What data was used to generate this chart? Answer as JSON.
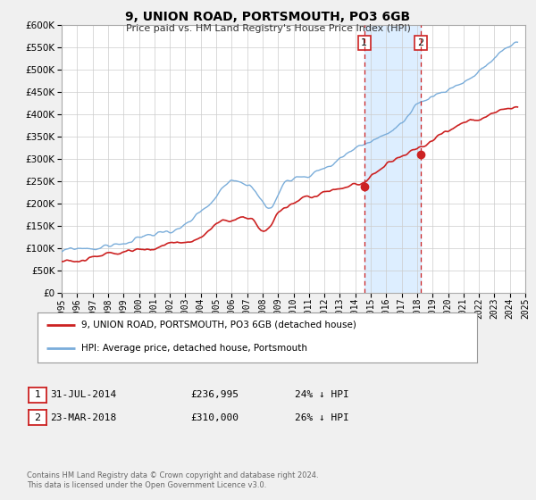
{
  "title": "9, UNION ROAD, PORTSMOUTH, PO3 6GB",
  "subtitle": "Price paid vs. HM Land Registry's House Price Index (HPI)",
  "xlim": [
    1995,
    2025
  ],
  "ylim": [
    0,
    600000
  ],
  "yticks": [
    0,
    50000,
    100000,
    150000,
    200000,
    250000,
    300000,
    350000,
    400000,
    450000,
    500000,
    550000,
    600000
  ],
  "xticks": [
    1995,
    1996,
    1997,
    1998,
    1999,
    2000,
    2001,
    2002,
    2003,
    2004,
    2005,
    2006,
    2007,
    2008,
    2009,
    2010,
    2011,
    2012,
    2013,
    2014,
    2015,
    2016,
    2017,
    2018,
    2019,
    2020,
    2021,
    2022,
    2023,
    2024,
    2025
  ],
  "hpi_color": "#7aadda",
  "price_color": "#cc2222",
  "marker_color": "#cc2222",
  "shaded_color": "#ddeeff",
  "vline1_x": 2014.58,
  "vline2_x": 2018.23,
  "vline_color": "#cc2222",
  "point1_y": 236995,
  "point2_y": 310000,
  "legend_label1": "9, UNION ROAD, PORTSMOUTH, PO3 6GB (detached house)",
  "legend_label2": "HPI: Average price, detached house, Portsmouth",
  "ann1_label": "1",
  "ann1_date": "31-JUL-2014",
  "ann1_price": "£236,995",
  "ann1_pct": "24% ↓ HPI",
  "ann2_label": "2",
  "ann2_date": "23-MAR-2018",
  "ann2_price": "£310,000",
  "ann2_pct": "26% ↓ HPI",
  "footer1": "Contains HM Land Registry data © Crown copyright and database right 2024.",
  "footer2": "This data is licensed under the Open Government Licence v3.0.",
  "background_color": "#f0f0f0",
  "plot_bg_color": "#ffffff",
  "grid_color": "#cccccc"
}
